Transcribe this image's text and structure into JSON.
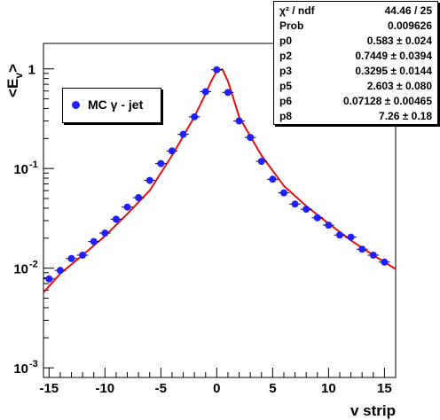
{
  "colors": {
    "points": "#1f1fff",
    "fit": "#e01010",
    "frame": "#000000"
  },
  "stats": {
    "header": {
      "name": "χ² / ndf",
      "value": "44.46 / 25"
    },
    "rows": [
      {
        "name": "Prob",
        "value": "0.009626"
      },
      {
        "name": "p0",
        "value": "0.583 ± 0.024"
      },
      {
        "name": "p2",
        "value": "0.7449 ± 0.0394"
      },
      {
        "name": "p3",
        "value": "0.3295 ± 0.0144"
      },
      {
        "name": "p5",
        "value": "2.603 ± 0.080"
      },
      {
        "name": "p6",
        "value": "0.07128 ± 0.00465"
      },
      {
        "name": "p8",
        "value": "7.26 ± 0.18"
      }
    ]
  },
  "legend": {
    "label": "MC γ - jet",
    "marker": "filled-circle"
  },
  "chart_data": {
    "type": "scatter",
    "title": "",
    "xlabel": "v strip",
    "ylabel": "<E_v>",
    "ylabel_main": "<E",
    "ylabel_sub": "v",
    "ylabel_close": ">",
    "xlim": [
      -15.5,
      16
    ],
    "ylim": [
      0.0008,
      1.8
    ],
    "yscale": "log",
    "grid": false,
    "legend_position": "top-left",
    "x_ticks": [
      {
        "value": -15,
        "label": "-15"
      },
      {
        "value": -10,
        "label": "-10"
      },
      {
        "value": -5,
        "label": "-5"
      },
      {
        "value": 0,
        "label": "0"
      },
      {
        "value": 5,
        "label": "5"
      },
      {
        "value": 10,
        "label": "10"
      },
      {
        "value": 15,
        "label": "15"
      }
    ],
    "y_ticks": [
      {
        "value": 1,
        "base": "1",
        "exp": ""
      },
      {
        "value": 0.1,
        "base": "10",
        "exp": "-1"
      },
      {
        "value": 0.01,
        "base": "10",
        "exp": "-2"
      },
      {
        "value": 0.001,
        "base": "10",
        "exp": "-3"
      }
    ],
    "series": [
      {
        "name": "MC γ - jet",
        "x": [
          -15,
          -14,
          -13,
          -12,
          -11,
          -10,
          -9,
          -8,
          -7,
          -6,
          -5,
          -4,
          -3,
          -2,
          -1,
          0,
          1,
          2,
          3,
          4,
          5,
          6,
          7,
          8,
          9,
          10,
          11,
          12,
          13,
          14,
          15
        ],
        "y": [
          0.0078,
          0.0095,
          0.0125,
          0.0135,
          0.0185,
          0.0225,
          0.031,
          0.041,
          0.051,
          0.076,
          0.112,
          0.15,
          0.22,
          0.33,
          0.59,
          0.98,
          0.58,
          0.3,
          0.205,
          0.118,
          0.078,
          0.057,
          0.044,
          0.039,
          0.032,
          0.027,
          0.0215,
          0.0205,
          0.0155,
          0.0135,
          0.0115
        ]
      }
    ],
    "fit": {
      "name": "fit",
      "x": [
        -15.5,
        -14,
        -12,
        -10,
        -8,
        -6,
        -4,
        -3,
        -2,
        -1,
        -0.5,
        0,
        0.5,
        1,
        1.5,
        2,
        3,
        4,
        6,
        8,
        10,
        12,
        14,
        16
      ],
      "y": [
        0.0057,
        0.0088,
        0.0135,
        0.021,
        0.035,
        0.06,
        0.135,
        0.21,
        0.33,
        0.56,
        0.75,
        0.95,
        0.99,
        0.75,
        0.5,
        0.33,
        0.21,
        0.135,
        0.067,
        0.042,
        0.028,
        0.019,
        0.0135,
        0.0098
      ]
    }
  }
}
